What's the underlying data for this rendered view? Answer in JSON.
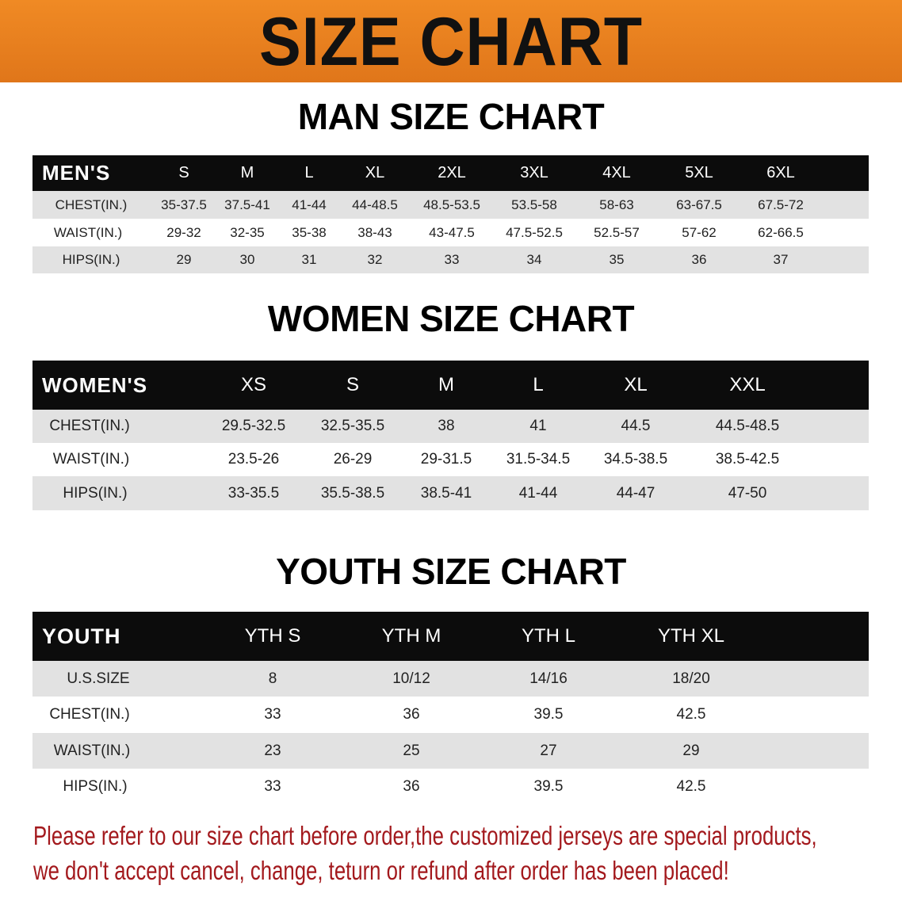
{
  "banner_title": "SIZE CHART",
  "men": {
    "title": "MAN SIZE CHART",
    "corner": "MEN'S",
    "sizes": [
      "S",
      "M",
      "L",
      "XL",
      "2XL",
      "3XL",
      "4XL",
      "5XL",
      "6XL"
    ],
    "rows": [
      {
        "label": "CHEST(IN.)",
        "values": [
          "35-37.5",
          "37.5-41",
          "41-44",
          "44-48.5",
          "48.5-53.5",
          "53.5-58",
          "58-63",
          "63-67.5",
          "67.5-72"
        ]
      },
      {
        "label": "WAIST(IN.)",
        "values": [
          "29-32",
          "32-35",
          "35-38",
          "38-43",
          "43-47.5",
          "47.5-52.5",
          "52.5-57",
          "57-62",
          "62-66.5"
        ]
      },
      {
        "label": "HIPS(IN.)",
        "values": [
          "29",
          "30",
          "31",
          "32",
          "33",
          "34",
          "35",
          "36",
          "37"
        ]
      }
    ]
  },
  "women": {
    "title": "WOMEN SIZE CHART",
    "corner": "WOMEN'S",
    "sizes": [
      "XS",
      "S",
      "M",
      "L",
      "XL",
      "XXL"
    ],
    "rows": [
      {
        "label": "CHEST(IN.)",
        "values": [
          "29.5-32.5",
          "32.5-35.5",
          "38",
          "41",
          "44.5",
          "44.5-48.5"
        ]
      },
      {
        "label": "WAIST(IN.)",
        "values": [
          "23.5-26",
          "26-29",
          "29-31.5",
          "31.5-34.5",
          "34.5-38.5",
          "38.5-42.5"
        ]
      },
      {
        "label": "HIPS(IN.)",
        "values": [
          "33-35.5",
          "35.5-38.5",
          "38.5-41",
          "41-44",
          "44-47",
          "47-50"
        ]
      }
    ]
  },
  "youth": {
    "title": "YOUTH SIZE CHART",
    "corner": "YOUTH",
    "sizes": [
      "YTH S",
      "YTH M",
      "YTH L",
      "YTH XL"
    ],
    "rows": [
      {
        "label": "U.S.SIZE",
        "values": [
          "8",
          "10/12",
          "14/16",
          "18/20"
        ]
      },
      {
        "label": "CHEST(IN.)",
        "values": [
          "33",
          "36",
          "39.5",
          "42.5"
        ]
      },
      {
        "label": "WAIST(IN.)",
        "values": [
          "23",
          "25",
          "27",
          "29"
        ]
      },
      {
        "label": "HIPS(IN.)",
        "values": [
          "33",
          "36",
          "39.5",
          "42.5"
        ]
      }
    ]
  },
  "notice": {
    "line1": "Please refer to our size chart before order,the customized jerseys are special products,",
    "line2": "we don't accept cancel, change, teturn or refund after order has been placed!"
  },
  "colors": {
    "banner": "#e8801f",
    "header_row": "#0c0c0c",
    "stripe": "#e2e2e2",
    "notice": "#a3191d"
  }
}
